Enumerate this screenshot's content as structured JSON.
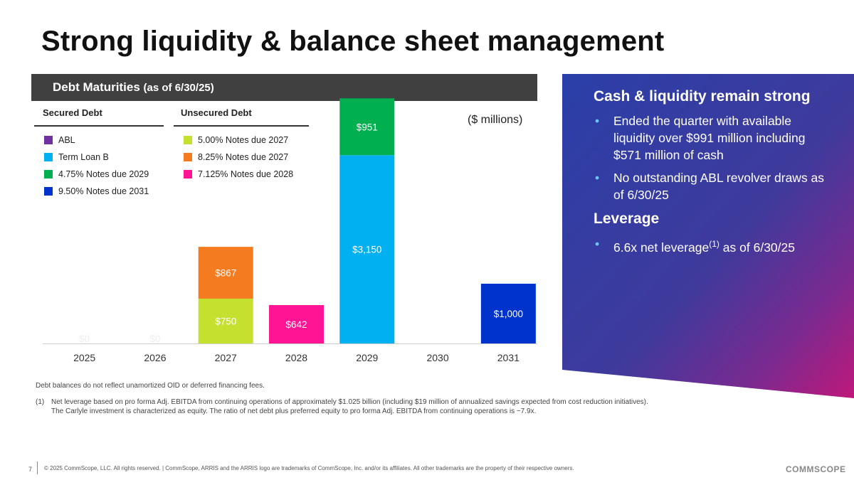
{
  "title": "Strong liquidity & balance sheet management",
  "panel": {
    "header": "Debt Maturities",
    "subheader": "(as of 6/30/25)"
  },
  "legend": {
    "secured_title": "Secured Debt",
    "unsecured_title": "Unsecured Debt",
    "secured": [
      {
        "label": "ABL",
        "color": "#7030a0"
      },
      {
        "label": "Term Loan B",
        "color": "#00b0f0"
      },
      {
        "label": "4.75% Notes due 2029",
        "color": "#00b050"
      },
      {
        "label": "9.50% Notes due 2031",
        "color": "#0033cc"
      }
    ],
    "unsecured": [
      {
        "label": "5.00% Notes due 2027",
        "color": "#c5e02e"
      },
      {
        "label": "8.25% Notes due 2027",
        "color": "#f47b20"
      },
      {
        "label": "7.125% Notes due 2028",
        "color": "#ff1493"
      }
    ]
  },
  "units": "($ millions)",
  "chart_data": {
    "type": "bar",
    "stacked": true,
    "title": "Debt Maturities (as of 6/30/25)",
    "ylabel": "($ millions)",
    "categories": [
      "2025",
      "2026",
      "2027",
      "2028",
      "2029",
      "2030",
      "2031"
    ],
    "ylim": [
      0,
      4200
    ],
    "segments": [
      {
        "category": "2025",
        "series": "ABL",
        "value": 0,
        "label": "$0",
        "color": "#e6e6e6"
      },
      {
        "category": "2026",
        "series": "ABL",
        "value": 0,
        "label": "$0",
        "color": "#e6e6e6"
      },
      {
        "category": "2027",
        "series": "5.00% Notes due 2027",
        "value": 750,
        "label": "$750",
        "color": "#c5e02e"
      },
      {
        "category": "2027",
        "series": "8.25% Notes due 2027",
        "value": 867,
        "label": "$867",
        "color": "#f47b20"
      },
      {
        "category": "2028",
        "series": "7.125% Notes due 2028",
        "value": 642,
        "label": "$642",
        "color": "#ff1493"
      },
      {
        "category": "2029",
        "series": "Term Loan B",
        "value": 3150,
        "label": "$3,150",
        "color": "#00b0f0"
      },
      {
        "category": "2029",
        "series": "4.75% Notes due 2029",
        "value": 951,
        "label": "$951",
        "color": "#00b050"
      },
      {
        "category": "2031",
        "series": "9.50% Notes due 2031",
        "value": 1000,
        "label": "$1,000",
        "color": "#0033cc"
      }
    ]
  },
  "right": {
    "h1": "Cash & liquidity remain strong",
    "b1": "Ended the quarter with available liquidity over $991 million including $571 million of cash",
    "b2": "No outstanding ABL revolver draws as of 6/30/25",
    "h2": "Leverage",
    "b3_pre": "6.6x net leverage",
    "b3_sup": "(1)",
    "b3_post": " as of 6/30/25",
    "bullet": "•"
  },
  "footnotes": {
    "f1": "Debt balances do not reflect unamortized OID or deferred financing fees.",
    "f2_num": "(1)",
    "f2": "Net leverage based on pro forma Adj. EBITDA from continuing operations of approximately $1.025 billion (including $19 million of annualized savings expected from cost reduction initiatives).  The Carlyle investment is characterized as equity. The ratio of net debt plus preferred equity to pro forma Adj. EBITDA from continuing operations is ~7.9x."
  },
  "footer": {
    "page": "7",
    "copyright": "© 2025 CommScope, LLC. All rights reserved. | CommScope, ARRIS and the ARRIS logo are trademarks of CommScope, Inc. and/or its affiliates.  All other trademarks are the property of their respective owners.",
    "logo": "COMMSCOPE"
  }
}
